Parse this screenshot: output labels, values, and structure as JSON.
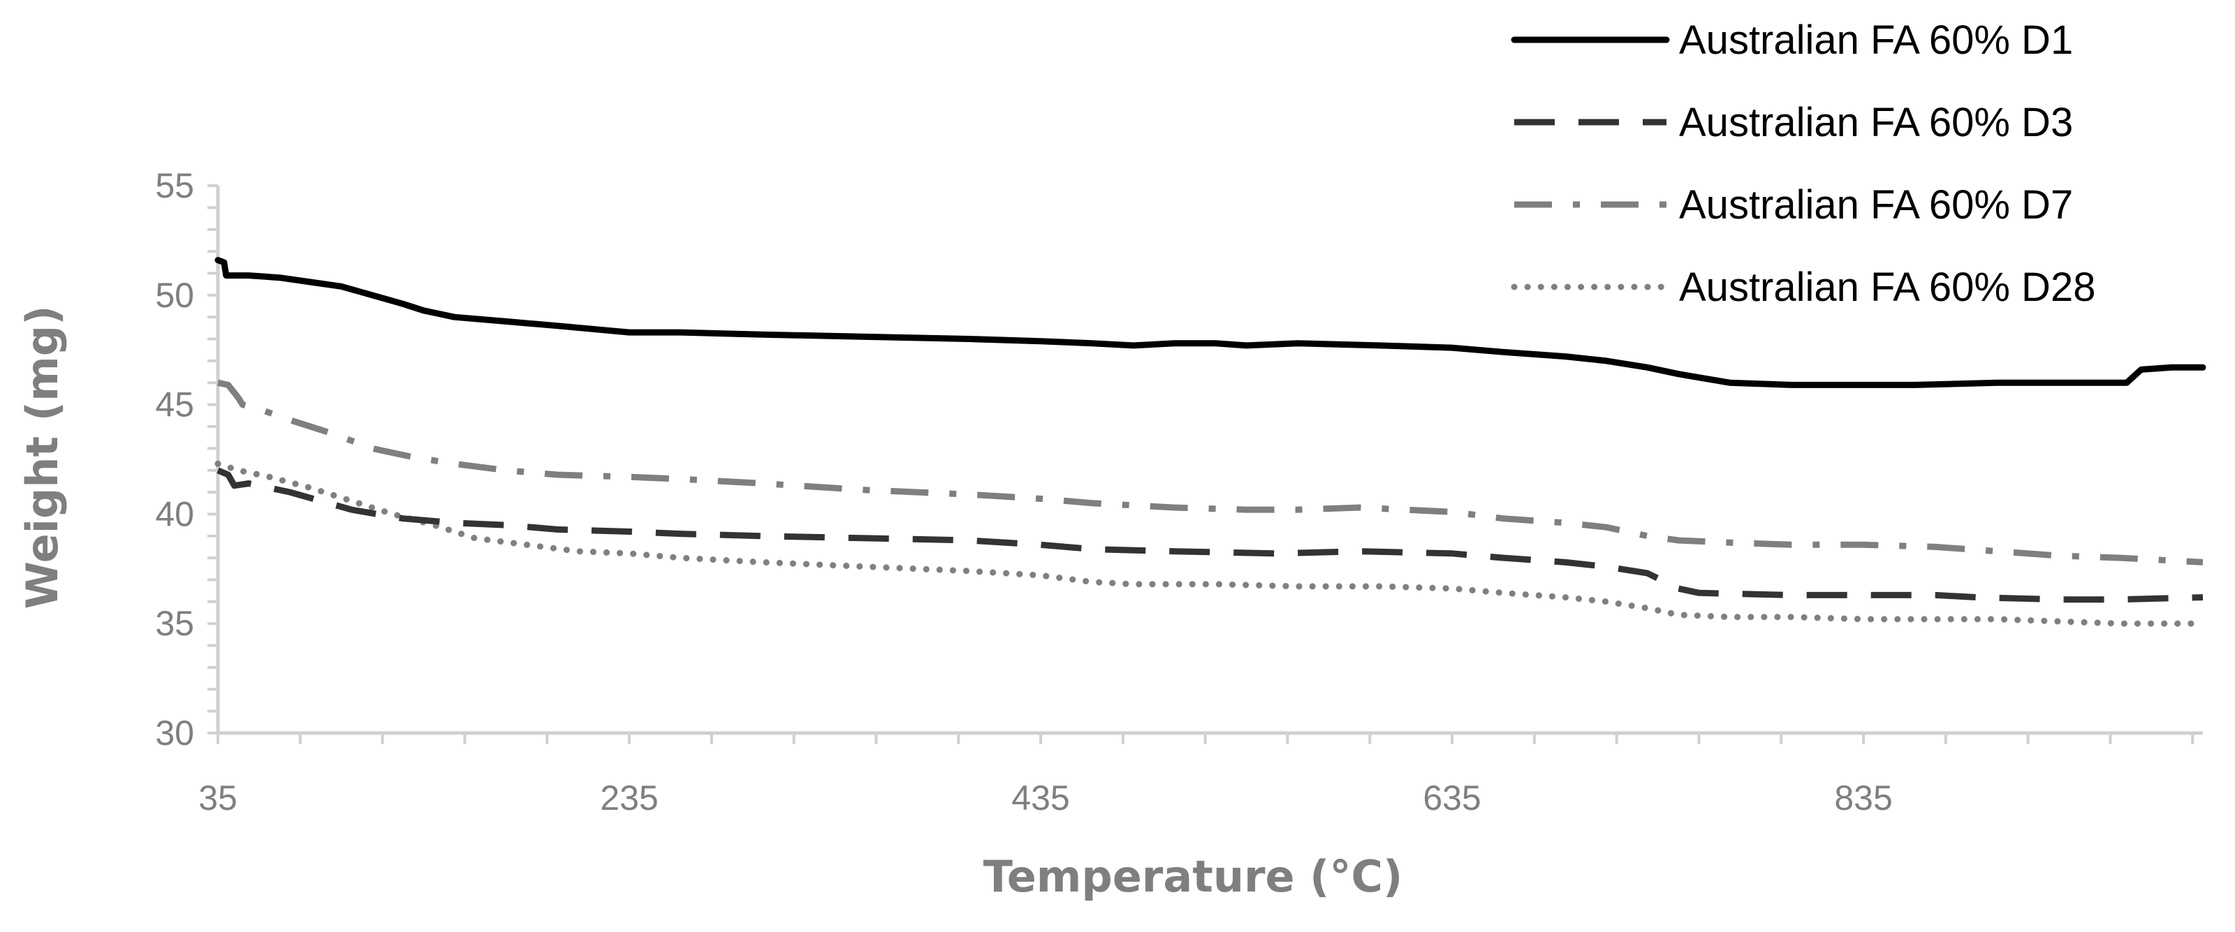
{
  "chart_data": {
    "type": "line",
    "title": "",
    "xlabel": "Temperature (°C)",
    "ylabel": "Weight (mg)",
    "xlim": [
      35,
      1000
    ],
    "ylim": [
      30,
      55
    ],
    "x_ticks": [
      35,
      235,
      435,
      635,
      835
    ],
    "y_ticks": [
      30,
      35,
      40,
      45,
      50,
      55
    ],
    "grid": false,
    "legend_position": "top-right",
    "series": [
      {
        "name": "Australian FA 60% D1",
        "color": "#000000",
        "style": "solid",
        "points": [
          [
            35,
            51.6
          ],
          [
            38,
            51.5
          ],
          [
            39,
            50.9
          ],
          [
            50,
            50.9
          ],
          [
            65,
            50.8
          ],
          [
            80,
            50.6
          ],
          [
            95,
            50.4
          ],
          [
            110,
            50.0
          ],
          [
            125,
            49.6
          ],
          [
            135,
            49.3
          ],
          [
            150,
            49.0
          ],
          [
            175,
            48.8
          ],
          [
            200,
            48.6
          ],
          [
            235,
            48.3
          ],
          [
            260,
            48.3
          ],
          [
            300,
            48.2
          ],
          [
            350,
            48.1
          ],
          [
            400,
            48.0
          ],
          [
            435,
            47.9
          ],
          [
            460,
            47.8
          ],
          [
            480,
            47.7
          ],
          [
            500,
            47.8
          ],
          [
            520,
            47.8
          ],
          [
            535,
            47.7
          ],
          [
            560,
            47.8
          ],
          [
            600,
            47.7
          ],
          [
            635,
            47.6
          ],
          [
            660,
            47.4
          ],
          [
            690,
            47.2
          ],
          [
            710,
            47.0
          ],
          [
            730,
            46.7
          ],
          [
            745,
            46.4
          ],
          [
            770,
            46.0
          ],
          [
            800,
            45.9
          ],
          [
            835,
            45.9
          ],
          [
            860,
            45.9
          ],
          [
            900,
            46.0
          ],
          [
            930,
            46.0
          ],
          [
            955,
            46.0
          ],
          [
            963,
            46.0
          ],
          [
            970,
            46.6
          ],
          [
            985,
            46.7
          ],
          [
            1000,
            46.7
          ]
        ]
      },
      {
        "name": "Australian FA 60% D3",
        "color": "#333333",
        "style": "dash",
        "points": [
          [
            35,
            42.0
          ],
          [
            40,
            41.8
          ],
          [
            43,
            41.3
          ],
          [
            50,
            41.4
          ],
          [
            70,
            41.0
          ],
          [
            85,
            40.6
          ],
          [
            100,
            40.2
          ],
          [
            125,
            39.8
          ],
          [
            150,
            39.6
          ],
          [
            175,
            39.5
          ],
          [
            200,
            39.3
          ],
          [
            235,
            39.2
          ],
          [
            260,
            39.1
          ],
          [
            300,
            39.0
          ],
          [
            350,
            38.9
          ],
          [
            400,
            38.8
          ],
          [
            435,
            38.6
          ],
          [
            460,
            38.4
          ],
          [
            500,
            38.3
          ],
          [
            550,
            38.2
          ],
          [
            590,
            38.3
          ],
          [
            635,
            38.2
          ],
          [
            660,
            38.0
          ],
          [
            690,
            37.8
          ],
          [
            710,
            37.6
          ],
          [
            730,
            37.3
          ],
          [
            745,
            36.6
          ],
          [
            755,
            36.4
          ],
          [
            800,
            36.3
          ],
          [
            835,
            36.3
          ],
          [
            870,
            36.3
          ],
          [
            890,
            36.2
          ],
          [
            930,
            36.1
          ],
          [
            960,
            36.1
          ],
          [
            1000,
            36.2
          ]
        ]
      },
      {
        "name": "Australian FA 60% D7",
        "color": "#7f7f7f",
        "style": "dashdot",
        "points": [
          [
            35,
            46.0
          ],
          [
            40,
            45.9
          ],
          [
            45,
            45.3
          ],
          [
            47,
            45.0
          ],
          [
            55,
            44.8
          ],
          [
            70,
            44.3
          ],
          [
            90,
            43.7
          ],
          [
            110,
            43.0
          ],
          [
            130,
            42.6
          ],
          [
            150,
            42.3
          ],
          [
            175,
            42.0
          ],
          [
            200,
            41.8
          ],
          [
            235,
            41.7
          ],
          [
            260,
            41.6
          ],
          [
            300,
            41.4
          ],
          [
            350,
            41.1
          ],
          [
            400,
            40.9
          ],
          [
            435,
            40.7
          ],
          [
            460,
            40.5
          ],
          [
            500,
            40.3
          ],
          [
            535,
            40.2
          ],
          [
            560,
            40.2
          ],
          [
            590,
            40.3
          ],
          [
            635,
            40.1
          ],
          [
            660,
            39.8
          ],
          [
            690,
            39.6
          ],
          [
            710,
            39.4
          ],
          [
            730,
            39.0
          ],
          [
            745,
            38.8
          ],
          [
            770,
            38.7
          ],
          [
            800,
            38.6
          ],
          [
            835,
            38.6
          ],
          [
            870,
            38.5
          ],
          [
            900,
            38.3
          ],
          [
            930,
            38.1
          ],
          [
            960,
            38.0
          ],
          [
            1000,
            37.8
          ]
        ]
      },
      {
        "name": "Australian FA 60% D28",
        "color": "#808080",
        "style": "dot",
        "points": [
          [
            35,
            42.3
          ],
          [
            45,
            42.0
          ],
          [
            60,
            41.7
          ],
          [
            80,
            41.2
          ],
          [
            100,
            40.6
          ],
          [
            120,
            40.0
          ],
          [
            140,
            39.5
          ],
          [
            160,
            38.9
          ],
          [
            185,
            38.6
          ],
          [
            210,
            38.3
          ],
          [
            235,
            38.2
          ],
          [
            260,
            38.0
          ],
          [
            300,
            37.8
          ],
          [
            350,
            37.6
          ],
          [
            400,
            37.4
          ],
          [
            435,
            37.2
          ],
          [
            460,
            36.9
          ],
          [
            480,
            36.8
          ],
          [
            520,
            36.8
          ],
          [
            560,
            36.7
          ],
          [
            600,
            36.7
          ],
          [
            635,
            36.6
          ],
          [
            660,
            36.4
          ],
          [
            690,
            36.2
          ],
          [
            710,
            36.0
          ],
          [
            730,
            35.7
          ],
          [
            745,
            35.4
          ],
          [
            770,
            35.3
          ],
          [
            800,
            35.3
          ],
          [
            835,
            35.2
          ],
          [
            870,
            35.2
          ],
          [
            900,
            35.2
          ],
          [
            930,
            35.1
          ],
          [
            960,
            35.0
          ],
          [
            1000,
            35.0
          ]
        ]
      }
    ]
  }
}
